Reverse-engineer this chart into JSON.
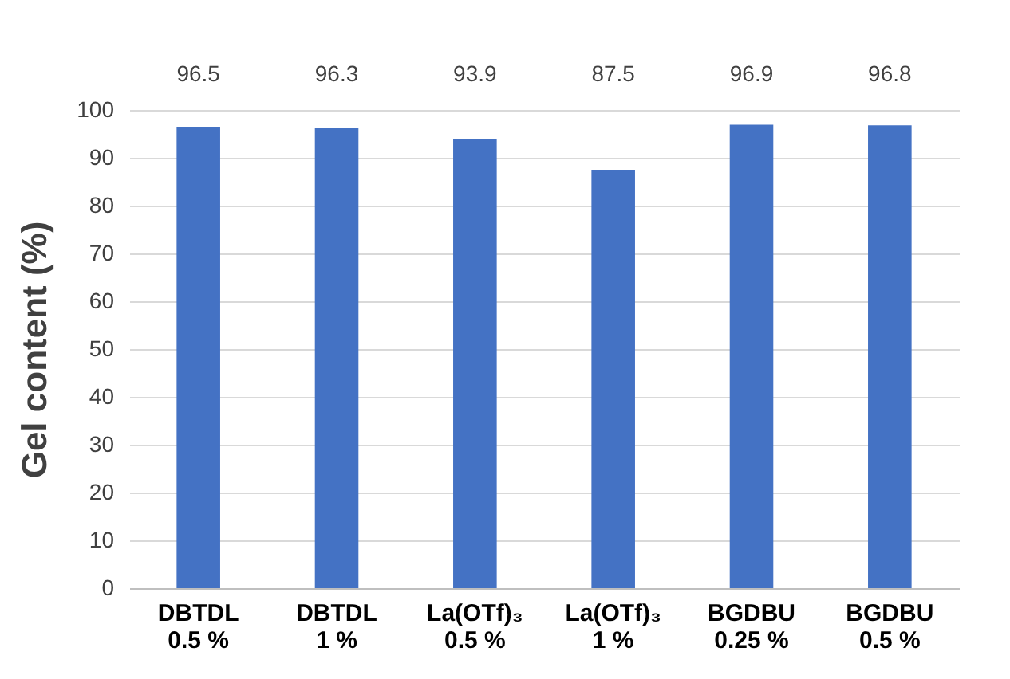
{
  "chart_data": {
    "type": "bar",
    "ylabel": "Gel content (%)",
    "categories": [
      "DBTDL\n0.5 %",
      "DBTDL\n1 %",
      "La(OTf)₃\n0.5 %",
      "La(OTf)₃\n1 %",
      "BGDBU\n0.25 %",
      "BGDBU\n0.5 %"
    ],
    "values": [
      96.5,
      96.3,
      93.9,
      87.5,
      96.9,
      96.8
    ],
    "color": "#4472c4",
    "ylim": [
      0,
      100
    ],
    "yticks": [
      0,
      10,
      20,
      30,
      40,
      50,
      60,
      70,
      80,
      90,
      100
    ],
    "grid": "y",
    "data_labels": true
  }
}
